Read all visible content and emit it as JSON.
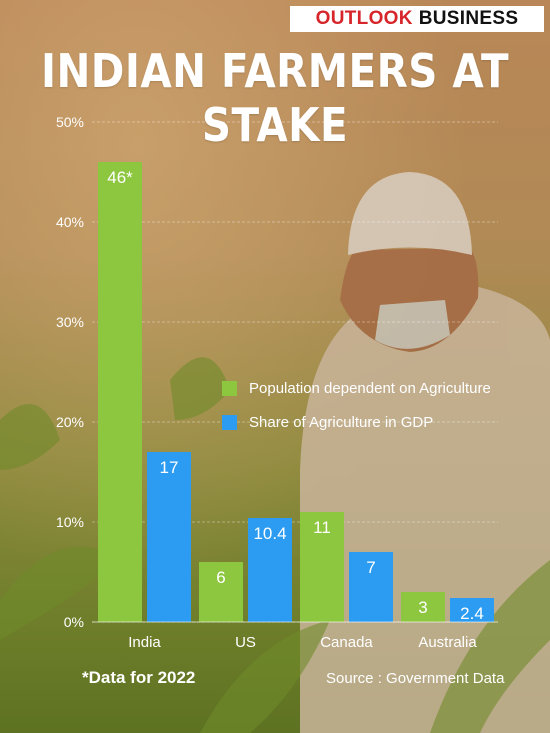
{
  "brand": {
    "part1": "OUTLOOK",
    "part2": "BUSINESS"
  },
  "footnote": "*Data for 2022",
  "source": "Source : Government Data",
  "colors": {
    "population": "#8dc63f",
    "gdp": "#2b9cf2",
    "brand_red": "#d7262b"
  },
  "chart_data": {
    "type": "bar",
    "title": "INDIAN FARMERS AT STAKE",
    "categories": [
      "India",
      "US",
      "Canada",
      "Australia"
    ],
    "series": [
      {
        "name": "Population dependent on Agriculture",
        "values": [
          46,
          6,
          11,
          3
        ],
        "labels": [
          "46*",
          "6",
          "11",
          "3"
        ],
        "color": "#8dc63f"
      },
      {
        "name": "Share of Agriculture in GDP",
        "values": [
          17,
          10.4,
          7,
          2.4
        ],
        "labels": [
          "17",
          "10.4",
          "7",
          "2.4"
        ],
        "color": "#2b9cf2"
      }
    ],
    "y_ticks": [
      "0%",
      "10%",
      "20%",
      "30%",
      "40%",
      "50%"
    ],
    "ylim": [
      0,
      50
    ],
    "grid": true,
    "legend_position": "center-right"
  }
}
